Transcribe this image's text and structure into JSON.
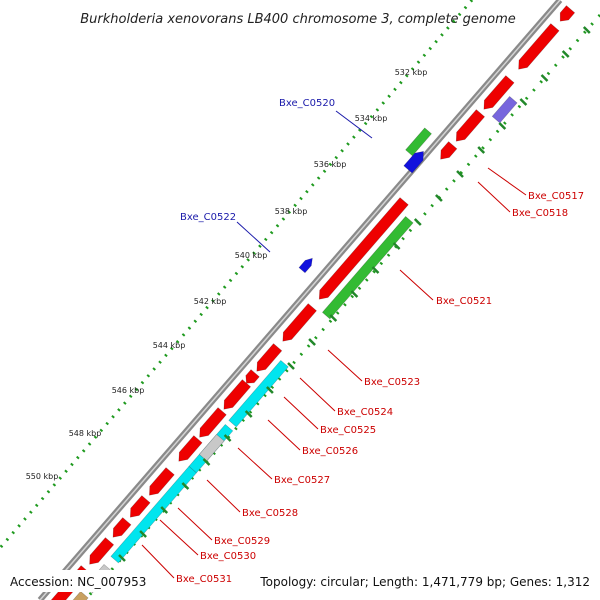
{
  "title": "Burkholderia xenovorans LB400 chromosome 3, complete genome",
  "footer": {
    "accession": "Accession: NC_007953",
    "summary": "Topology: circular; Length: 1,471,779 bp; Genes: 1,312"
  },
  "scale_ticks": [
    "532 kbp",
    "534 kbp",
    "536 kbp",
    "538 kbp",
    "540 kbp",
    "542 kbp",
    "544 kbp",
    "546 kbp",
    "548 kbp",
    "550 kbp"
  ],
  "gene_labels": [
    {
      "text": "Bxe_C0520",
      "color": "#1a1aaa"
    },
    {
      "text": "Bxe_C0522",
      "color": "#1a1aaa"
    },
    {
      "text": "Bxe_C0517",
      "color": "#cc0000"
    },
    {
      "text": "Bxe_C0518",
      "color": "#cc0000"
    },
    {
      "text": "Bxe_C0521",
      "color": "#cc0000"
    },
    {
      "text": "Bxe_C0523",
      "color": "#cc0000"
    },
    {
      "text": "Bxe_C0524",
      "color": "#cc0000"
    },
    {
      "text": "Bxe_C0525",
      "color": "#cc0000"
    },
    {
      "text": "Bxe_C0526",
      "color": "#cc0000"
    },
    {
      "text": "Bxe_C0527",
      "color": "#cc0000"
    },
    {
      "text": "Bxe_C0528",
      "color": "#cc0000"
    },
    {
      "text": "Bxe_C0529",
      "color": "#cc0000"
    },
    {
      "text": "Bxe_C0530",
      "color": "#cc0000"
    },
    {
      "text": "Bxe_C0531",
      "color": "#cc0000"
    }
  ],
  "colors": {
    "forward_gene": "#ee0000",
    "cog_green": "#33bb33",
    "cog_cyan": "#00e5ee",
    "cog_grey": "#c8c8c8",
    "cog_purple": "#7766dd",
    "reverse_gene_blue": "#1111dd",
    "backbone": "#888888",
    "tick_green": "#22882a"
  }
}
